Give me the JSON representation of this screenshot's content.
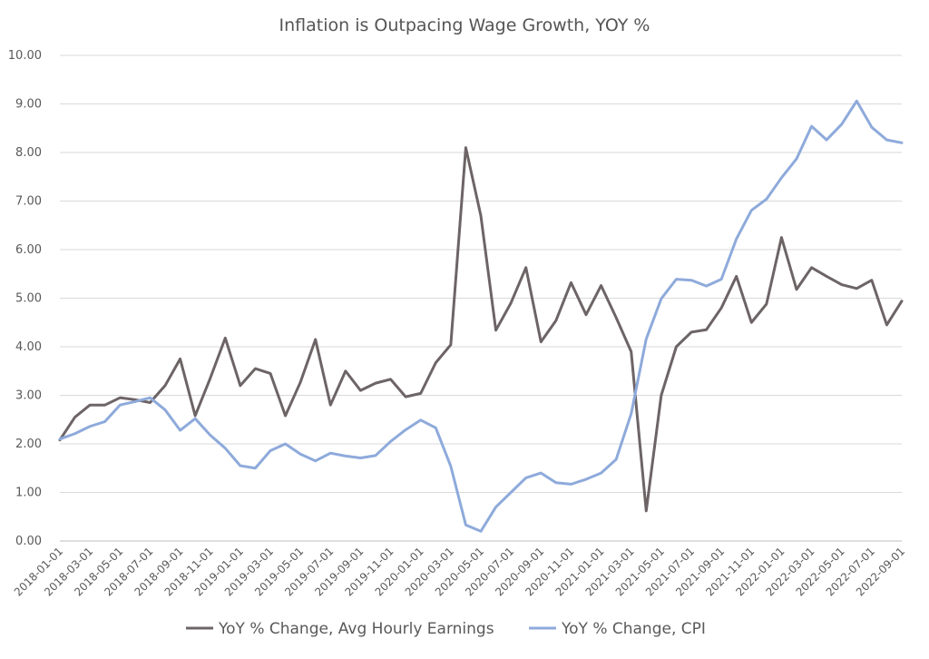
{
  "chart_data": {
    "type": "line",
    "title": "Inflation is Outpacing Wage Growth, YOY %",
    "xlabel": "",
    "ylabel": "",
    "ylim": [
      0,
      10
    ],
    "yticks": [
      "0.00",
      "1.00",
      "2.00",
      "3.00",
      "4.00",
      "5.00",
      "6.00",
      "7.00",
      "8.00",
      "9.00",
      "10.00"
    ],
    "grid": true,
    "legend_position": "bottom",
    "x": [
      "2018-01-01",
      "2018-02-01",
      "2018-03-01",
      "2018-04-01",
      "2018-05-01",
      "2018-06-01",
      "2018-07-01",
      "2018-08-01",
      "2018-09-01",
      "2018-10-01",
      "2018-11-01",
      "2018-12-01",
      "2019-01-01",
      "2019-02-01",
      "2019-03-01",
      "2019-04-01",
      "2019-05-01",
      "2019-06-01",
      "2019-07-01",
      "2019-08-01",
      "2019-09-01",
      "2019-10-01",
      "2019-11-01",
      "2019-12-01",
      "2020-01-01",
      "2020-02-01",
      "2020-03-01",
      "2020-04-01",
      "2020-05-01",
      "2020-06-01",
      "2020-07-01",
      "2020-08-01",
      "2020-09-01",
      "2020-10-01",
      "2020-11-01",
      "2020-12-01",
      "2021-01-01",
      "2021-02-01",
      "2021-03-01",
      "2021-04-01",
      "2021-05-01",
      "2021-06-01",
      "2021-07-01",
      "2021-08-01",
      "2021-09-01",
      "2021-10-01",
      "2021-11-01",
      "2021-12-01",
      "2022-01-01",
      "2022-02-01",
      "2022-03-01",
      "2022-04-01",
      "2022-05-01",
      "2022-06-01",
      "2022-07-01",
      "2022-08-01",
      "2022-09-01"
    ],
    "xtick_labels": [
      "2018-01-01",
      "2018-03-01",
      "2018-05-01",
      "2018-07-01",
      "2018-09-01",
      "2018-11-01",
      "2019-01-01",
      "2019-03-01",
      "2019-05-01",
      "2019-07-01",
      "2019-09-01",
      "2019-11-01",
      "2020-01-01",
      "2020-03-01",
      "2020-05-01",
      "2020-07-01",
      "2020-09-01",
      "2020-11-01",
      "2021-01-01",
      "2021-03-01",
      "2021-05-01",
      "2021-07-01",
      "2021-09-01",
      "2021-11-01",
      "2022-01-01",
      "2022-03-01",
      "2022-05-01",
      "2022-07-01",
      "2022-09-01"
    ],
    "series": [
      {
        "name": "YoY % Change, Avg Hourly Earnings",
        "color": "#6d6466",
        "values": [
          2.08,
          2.55,
          2.8,
          2.8,
          2.95,
          2.91,
          2.85,
          3.2,
          3.75,
          2.58,
          3.35,
          4.18,
          3.2,
          3.55,
          3.45,
          2.58,
          3.27,
          4.15,
          2.8,
          3.5,
          3.1,
          3.25,
          3.33,
          2.97,
          3.04,
          3.67,
          4.04,
          8.1,
          6.7,
          4.34,
          4.9,
          5.63,
          4.1,
          4.54,
          5.32,
          4.66,
          5.26,
          4.6,
          3.9,
          0.62,
          3.0,
          4.0,
          4.3,
          4.35,
          4.8,
          5.45,
          4.5,
          4.88,
          6.25,
          5.18,
          5.63,
          5.45,
          5.28,
          5.2,
          5.37,
          4.45,
          4.94
        ]
      },
      {
        "name": "YoY % Change, CPI",
        "color": "#8eaadb",
        "values": [
          2.1,
          2.21,
          2.36,
          2.46,
          2.8,
          2.87,
          2.95,
          2.7,
          2.28,
          2.52,
          2.18,
          1.91,
          1.55,
          1.5,
          1.86,
          2.0,
          1.79,
          1.65,
          1.81,
          1.75,
          1.71,
          1.76,
          2.05,
          2.29,
          2.49,
          2.33,
          1.54,
          0.33,
          0.2,
          0.7,
          1.0,
          1.3,
          1.4,
          1.2,
          1.17,
          1.27,
          1.4,
          1.68,
          2.62,
          4.16,
          4.99,
          5.39,
          5.37,
          5.25,
          5.39,
          6.22,
          6.81,
          7.04,
          7.48,
          7.87,
          8.54,
          8.26,
          8.58,
          9.06,
          8.52,
          8.26,
          8.2
        ]
      }
    ]
  }
}
